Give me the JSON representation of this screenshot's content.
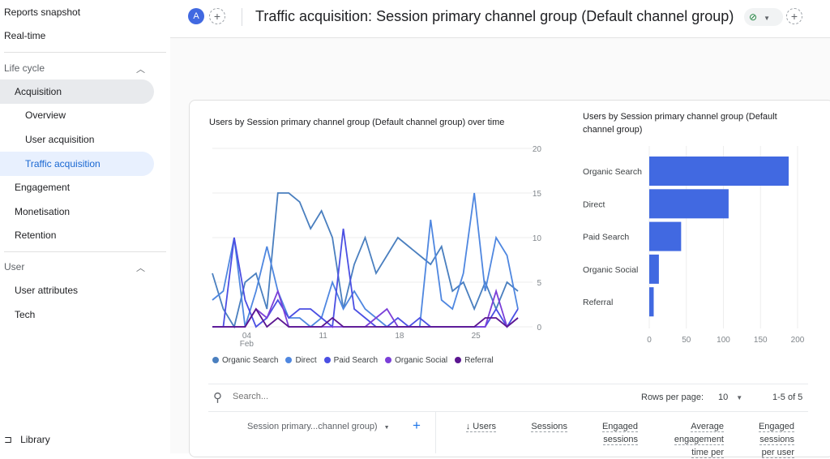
{
  "sidebar": {
    "items": [
      "Reports snapshot",
      "Real-time"
    ],
    "lifecycle": "Life cycle",
    "lifecycle_items": [
      "Acquisition",
      "Overview",
      "User acquisition",
      "Traffic acquisition",
      "Engagement",
      "Monetisation",
      "Retention"
    ],
    "user": "User",
    "user_items": [
      "User attributes",
      "Tech"
    ],
    "library": "Library"
  },
  "header": {
    "avatar": "A",
    "title": "Traffic acquisition: Session primary channel group (Default channel group)"
  },
  "line_chart_title": "Users by Session primary channel group (Default channel group) over time",
  "bar_chart_title": "Users by Session primary channel group (Default channel group)",
  "chart_data": [
    {
      "type": "line",
      "title": "Users by Session primary channel group (Default channel group) over time",
      "x": [
        "Feb 1",
        "Feb 2",
        "Feb 3",
        "Feb 4",
        "Feb 5",
        "Feb 6",
        "Feb 7",
        "Feb 8",
        "Feb 9",
        "Feb 10",
        "Feb 11",
        "Feb 12",
        "Feb 13",
        "Feb 14",
        "Feb 15",
        "Feb 16",
        "Feb 17",
        "Feb 18",
        "Feb 19",
        "Feb 20",
        "Feb 21",
        "Feb 22",
        "Feb 23",
        "Feb 24",
        "Feb 25",
        "Feb 26",
        "Feb 27",
        "Feb 28",
        "Feb 29"
      ],
      "xticks": [
        {
          "label": "04",
          "sub": "Feb",
          "index": 3
        },
        {
          "label": "11",
          "index": 10
        },
        {
          "label": "18",
          "index": 17
        },
        {
          "label": "25",
          "index": 24
        }
      ],
      "ylim": [
        0,
        20
      ],
      "yticks": [
        "0",
        "5",
        "10",
        "15",
        "20"
      ],
      "y_axis_side": "right",
      "grid": true,
      "legend": "bottom",
      "series": [
        {
          "name": "Organic Search",
          "color": "#4a7fbf",
          "values": [
            6,
            2,
            0,
            5,
            6,
            2,
            15,
            15,
            14,
            11,
            13,
            10,
            2,
            7,
            10,
            6,
            8,
            10,
            9,
            8,
            7,
            9,
            4,
            5,
            2,
            5,
            2,
            5,
            4
          ]
        },
        {
          "name": "Direct",
          "color": "#4f87e0",
          "values": [
            3,
            4,
            10,
            0,
            4,
            9,
            4,
            1,
            1,
            0,
            1,
            5,
            2,
            4,
            2,
            1,
            0,
            0,
            0,
            0,
            12,
            3,
            2,
            6,
            15,
            4,
            10,
            8,
            2
          ]
        },
        {
          "name": "Paid Search",
          "color": "#4b4fe3",
          "values": [
            0,
            0,
            10,
            3,
            0,
            1,
            3,
            1,
            2,
            2,
            1,
            0,
            11,
            2,
            1,
            0,
            0,
            1,
            0,
            1,
            0,
            0,
            0,
            0,
            0,
            0,
            2,
            0,
            2
          ]
        },
        {
          "name": "Organic Social",
          "color": "#7b3fd8",
          "values": [
            0,
            0,
            0,
            0,
            2,
            1,
            4,
            0,
            0,
            0,
            0,
            0,
            0,
            0,
            0,
            1,
            2,
            0,
            0,
            0,
            0,
            0,
            0,
            0,
            0,
            0,
            4,
            0,
            1
          ]
        },
        {
          "name": "Referral",
          "color": "#5b1690",
          "values": [
            0,
            0,
            0,
            0,
            2,
            0,
            1,
            0,
            0,
            0,
            0,
            1,
            0,
            0,
            0,
            0,
            0,
            0,
            0,
            0,
            0,
            0,
            0,
            0,
            0,
            1,
            1,
            0,
            1
          ]
        }
      ]
    },
    {
      "type": "bar",
      "orientation": "horizontal",
      "title": "Users by Session primary channel group (Default channel group)",
      "categories": [
        "Organic Search",
        "Direct",
        "Paid Search",
        "Organic Social",
        "Referral"
      ],
      "values": [
        188,
        107,
        43,
        13,
        6
      ],
      "xlim": [
        0,
        200
      ],
      "xticks": [
        "0",
        "50",
        "100",
        "150",
        "200"
      ],
      "color": "#4169e1",
      "grid": true
    }
  ],
  "table": {
    "search_placeholder": "Search...",
    "rows_per_page_label": "Rows per page:",
    "rows_per_page": "10",
    "pagination": "1-5 of 5",
    "dimension": "Session primary...channel group)",
    "columns": [
      "↓ Users",
      "Sessions",
      "Engaged sessions",
      "Average engagement time per",
      "Engaged sessions per user"
    ]
  }
}
